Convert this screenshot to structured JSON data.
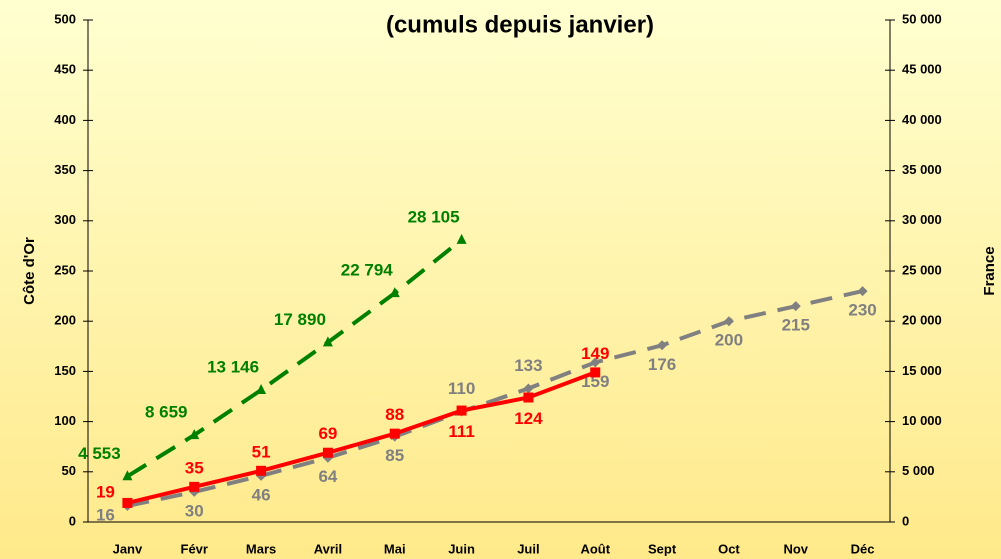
{
  "chart_data": {
    "type": "line",
    "title": "(cumuls depuis janvier)",
    "ylabel": "Côte d'Or",
    "y2label": "France",
    "categories": [
      "Janv",
      "Févr",
      "Mars",
      "Avril",
      "Mai",
      "Juin",
      "Juil",
      "Août",
      "Sept",
      "Oct",
      "Nov",
      "Déc"
    ],
    "ylim": [
      0,
      500
    ],
    "yticks": [
      0,
      50,
      100,
      150,
      200,
      250,
      300,
      350,
      400,
      450,
      500
    ],
    "y2lim": [
      0,
      50000
    ],
    "y2ticks": [
      0,
      {
        "value": 5000,
        "label": "5 000"
      },
      {
        "value": 10000,
        "label": "10 000"
      },
      {
        "value": 15000,
        "label": "15 000"
      },
      {
        "value": 20000,
        "label": "20 000"
      },
      {
        "value": 25000,
        "label": "25 000"
      },
      {
        "value": 30000,
        "label": "30 000"
      },
      {
        "value": 35000,
        "label": "35 000"
      },
      {
        "value": 40000,
        "label": "40 000"
      },
      {
        "value": 45000,
        "label": "45 000"
      },
      {
        "value": 50000,
        "label": "50 000"
      }
    ],
    "series": [
      {
        "color": "#808080",
        "marker": "diamond",
        "dashed": true,
        "values": [
          16,
          30,
          46,
          64,
          85,
          110,
          133,
          159,
          176,
          200,
          215,
          230
        ]
      },
      {
        "color": "#ff0000",
        "marker": "square",
        "dashed": false,
        "values": [
          19,
          35,
          51,
          69,
          88,
          111,
          124,
          149,
          null,
          null,
          null,
          null
        ]
      },
      {
        "color": "#008000",
        "marker": "triangle",
        "dashed": true,
        "axis": "y2",
        "values": [
          4553,
          8659,
          13146,
          17890,
          22794,
          28105,
          null,
          null,
          null,
          null,
          null,
          null
        ],
        "value_labels": [
          "4 553",
          "8 659",
          "13 146",
          "17 890",
          "22 794",
          "28 105",
          null,
          null,
          null,
          null,
          null,
          null
        ]
      }
    ]
  }
}
